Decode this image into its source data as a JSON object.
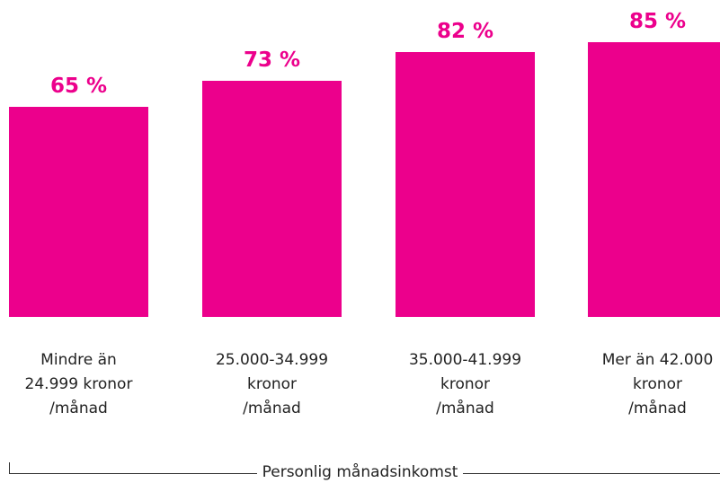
{
  "chart_data": {
    "type": "bar",
    "categories": [
      "Mindre än\n24.999 kronor\n/månad",
      "25.000-34.999\nkronor\n/månad",
      "35.000-41.999\nkronor\n/månad",
      "Mer än 42.000\nkronor\n/månad"
    ],
    "values": [
      65,
      73,
      82,
      85
    ],
    "value_labels": [
      "65 %",
      "73 %",
      "82 %",
      "85 %"
    ],
    "color": "#ec008c",
    "x_label": "Personlig månadsinkomst"
  }
}
